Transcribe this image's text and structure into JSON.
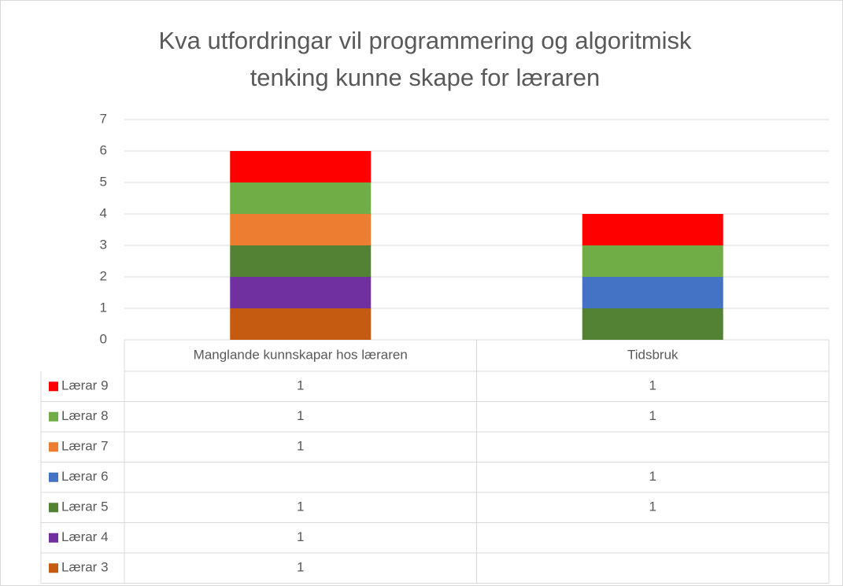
{
  "chart_data": {
    "type": "stacked_bar",
    "title": [
      "Kva utfordringar vil programmering og algoritmisk",
      "tenking kunne skape for læraren"
    ],
    "categories": [
      "Manglande kunnskapar hos læraren",
      "Tidsbruk"
    ],
    "series": [
      {
        "name": "Lærar 3",
        "color": "#c55a11",
        "values": [
          1,
          null
        ]
      },
      {
        "name": "Lærar 4",
        "color": "#7030a0",
        "values": [
          1,
          null
        ]
      },
      {
        "name": "Lærar 5",
        "color": "#548235",
        "values": [
          1,
          1
        ]
      },
      {
        "name": "Lærar 6",
        "color": "#4472c4",
        "values": [
          null,
          1
        ]
      },
      {
        "name": "Lærar 7",
        "color": "#ed7d31",
        "values": [
          1,
          null
        ]
      },
      {
        "name": "Lærar 8",
        "color": "#70ad47",
        "values": [
          1,
          1
        ]
      },
      {
        "name": "Lærar 9",
        "color": "#ff0000",
        "values": [
          1,
          1
        ]
      }
    ],
    "ylim": [
      0,
      7
    ],
    "yticks": [
      0,
      1,
      2,
      3,
      4,
      5,
      6,
      7
    ],
    "grid": true,
    "data_table": true
  }
}
